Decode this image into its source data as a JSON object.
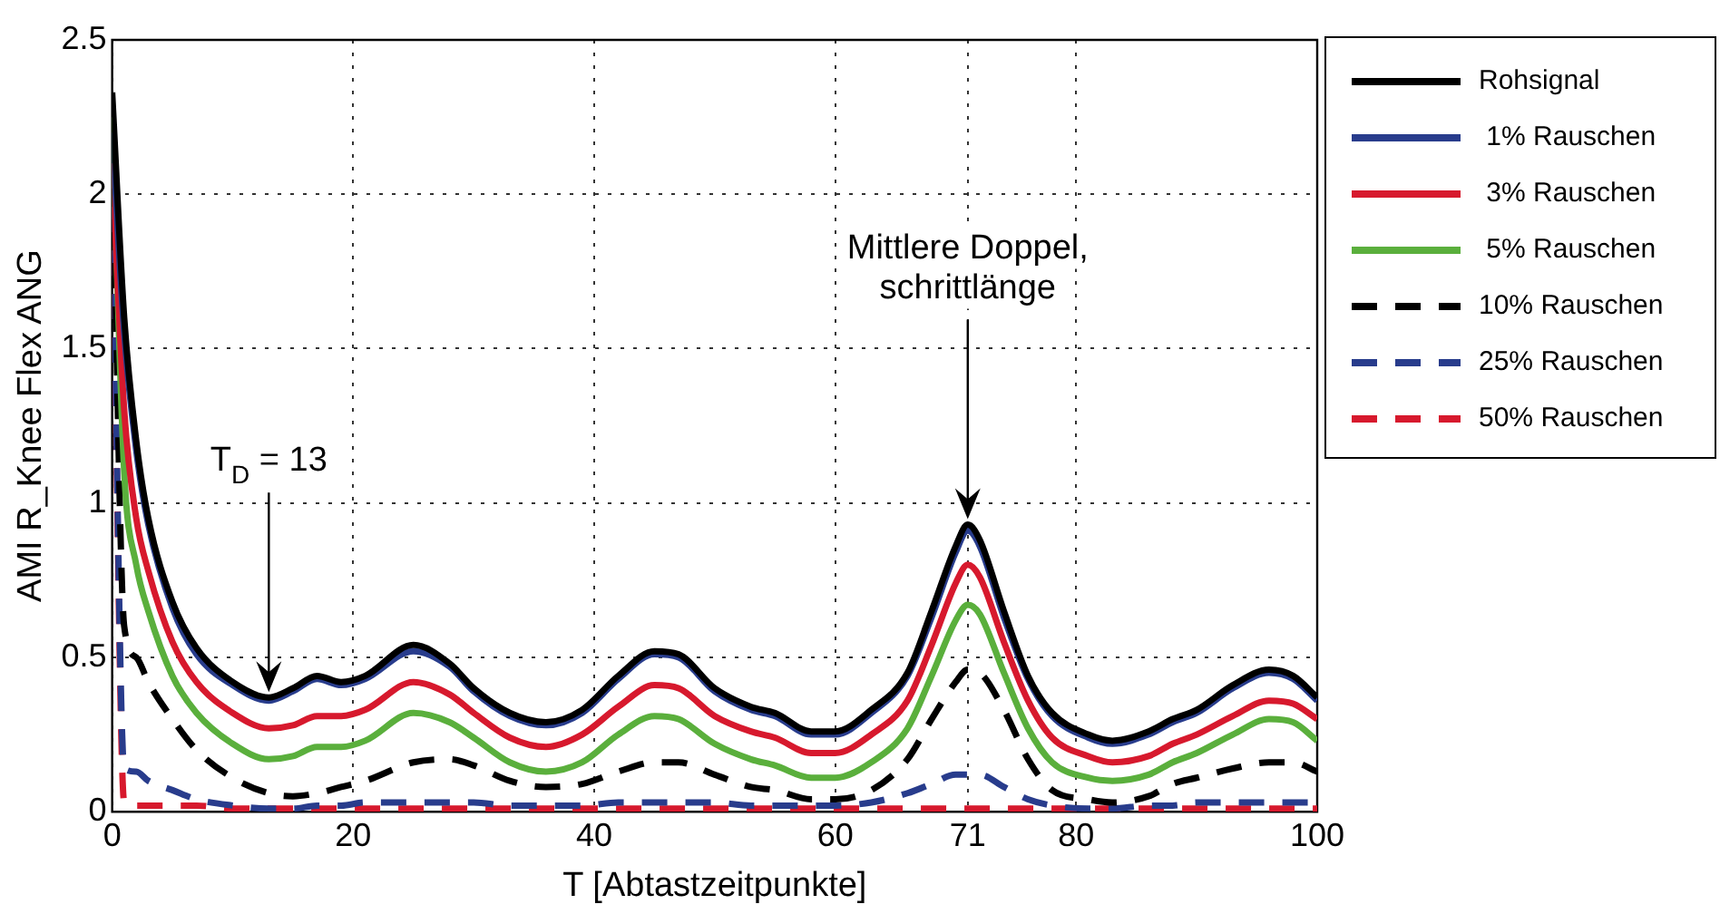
{
  "chart_data": {
    "type": "line",
    "xlabel": "T [Abtastzeitpunkte]",
    "ylabel": "AMI R_Knee Flex ANG",
    "x": [
      0,
      1,
      2,
      3,
      5,
      7,
      10,
      13,
      15,
      17,
      19,
      21,
      25,
      28,
      30,
      33,
      36,
      39,
      42,
      45,
      47,
      50,
      53,
      55,
      58,
      60,
      63,
      66,
      68,
      70,
      71,
      72,
      74,
      76,
      78,
      81,
      83,
      86,
      88,
      90,
      93,
      96,
      98,
      100
    ],
    "xlim": [
      0,
      100
    ],
    "xticks": [
      0,
      20,
      40,
      60,
      71,
      80,
      100
    ],
    "ylim": [
      0,
      2.5
    ],
    "yticks": [
      0,
      0.5,
      1,
      1.5,
      2,
      2.5
    ],
    "grid": true,
    "legend": "right",
    "marker": "none",
    "annotations": [
      {
        "text": "T$_{D}$ = 13",
        "x": 13,
        "y": 0.37
      },
      {
        "text": "Mittlere Doppel,\nschrittlänge",
        "x": 71,
        "y": 0.93
      }
    ],
    "series": [
      {
        "name": "Rohsignal",
        "color": "#000000",
        "line_style": "solid",
        "values": [
          2.33,
          1.6,
          1.2,
          0.95,
          0.68,
          0.53,
          0.42,
          0.37,
          0.4,
          0.44,
          0.42,
          0.44,
          0.54,
          0.48,
          0.4,
          0.32,
          0.29,
          0.33,
          0.44,
          0.52,
          0.51,
          0.4,
          0.34,
          0.32,
          0.26,
          0.26,
          0.33,
          0.45,
          0.65,
          0.86,
          0.93,
          0.88,
          0.65,
          0.44,
          0.32,
          0.25,
          0.23,
          0.26,
          0.3,
          0.33,
          0.41,
          0.46,
          0.44,
          0.37
        ]
      },
      {
        "name": " 1% Rauschen",
        "color": "#283c8c",
        "line_style": "solid",
        "values": [
          2.2,
          1.55,
          1.17,
          0.93,
          0.66,
          0.51,
          0.41,
          0.36,
          0.39,
          0.43,
          0.41,
          0.43,
          0.52,
          0.47,
          0.39,
          0.31,
          0.28,
          0.32,
          0.43,
          0.51,
          0.5,
          0.39,
          0.33,
          0.31,
          0.25,
          0.25,
          0.32,
          0.44,
          0.63,
          0.84,
          0.91,
          0.86,
          0.63,
          0.43,
          0.31,
          0.24,
          0.22,
          0.25,
          0.29,
          0.32,
          0.4,
          0.45,
          0.43,
          0.36
        ]
      },
      {
        "name": " 3% Rauschen",
        "color": "#d7192d",
        "line_style": "solid",
        "values": [
          2.1,
          1.3,
          0.95,
          0.78,
          0.55,
          0.42,
          0.32,
          0.27,
          0.28,
          0.31,
          0.31,
          0.33,
          0.42,
          0.38,
          0.32,
          0.24,
          0.21,
          0.25,
          0.34,
          0.41,
          0.4,
          0.31,
          0.26,
          0.24,
          0.19,
          0.19,
          0.25,
          0.36,
          0.54,
          0.74,
          0.8,
          0.76,
          0.55,
          0.36,
          0.24,
          0.18,
          0.16,
          0.18,
          0.22,
          0.25,
          0.31,
          0.36,
          0.35,
          0.3
        ]
      },
      {
        "name": " 5% Rauschen",
        "color": "#5aaf3c",
        "line_style": "solid",
        "values": [
          2.25,
          1.1,
          0.8,
          0.65,
          0.44,
          0.32,
          0.22,
          0.17,
          0.18,
          0.21,
          0.21,
          0.23,
          0.32,
          0.29,
          0.24,
          0.16,
          0.13,
          0.16,
          0.25,
          0.31,
          0.3,
          0.22,
          0.17,
          0.15,
          0.11,
          0.11,
          0.16,
          0.27,
          0.44,
          0.62,
          0.67,
          0.64,
          0.45,
          0.27,
          0.16,
          0.11,
          0.1,
          0.12,
          0.16,
          0.19,
          0.25,
          0.3,
          0.29,
          0.23
        ]
      },
      {
        "name": "10% Rauschen",
        "color": "#000000",
        "line_style": "dashed",
        "values": [
          2.2,
          0.6,
          0.5,
          0.42,
          0.3,
          0.2,
          0.11,
          0.06,
          0.05,
          0.06,
          0.08,
          0.1,
          0.16,
          0.17,
          0.15,
          0.1,
          0.08,
          0.09,
          0.13,
          0.16,
          0.16,
          0.12,
          0.08,
          0.07,
          0.04,
          0.04,
          0.07,
          0.17,
          0.3,
          0.42,
          0.46,
          0.45,
          0.33,
          0.17,
          0.07,
          0.04,
          0.03,
          0.05,
          0.09,
          0.11,
          0.14,
          0.16,
          0.16,
          0.13
        ]
      },
      {
        "name": "25% Rauschen",
        "color": "#283c8c",
        "line_style": "dashed",
        "values": [
          2.1,
          0.14,
          0.13,
          0.1,
          0.07,
          0.04,
          0.02,
          0.01,
          0.01,
          0.02,
          0.02,
          0.03,
          0.03,
          0.03,
          0.03,
          0.02,
          0.02,
          0.02,
          0.03,
          0.03,
          0.03,
          0.03,
          0.02,
          0.02,
          0.02,
          0.02,
          0.03,
          0.06,
          0.09,
          0.12,
          0.12,
          0.12,
          0.08,
          0.04,
          0.02,
          0.01,
          0.01,
          0.02,
          0.02,
          0.03,
          0.03,
          0.03,
          0.03,
          0.03
        ]
      },
      {
        "name": "50% Rauschen",
        "color": "#d7192d",
        "line_style": "dashed",
        "values": [
          2.1,
          0.03,
          0.02,
          0.02,
          0.02,
          0.02,
          0.01,
          0.01,
          0.01,
          0.01,
          0.01,
          0.01,
          0.01,
          0.01,
          0.01,
          0.01,
          0.01,
          0.01,
          0.01,
          0.01,
          0.01,
          0.01,
          0.01,
          0.01,
          0.01,
          0.01,
          0.01,
          0.01,
          0.01,
          0.01,
          0.01,
          0.01,
          0.01,
          0.01,
          0.01,
          0.01,
          0.01,
          0.01,
          0.01,
          0.01,
          0.01,
          0.01,
          0.01,
          0.01
        ]
      }
    ]
  }
}
